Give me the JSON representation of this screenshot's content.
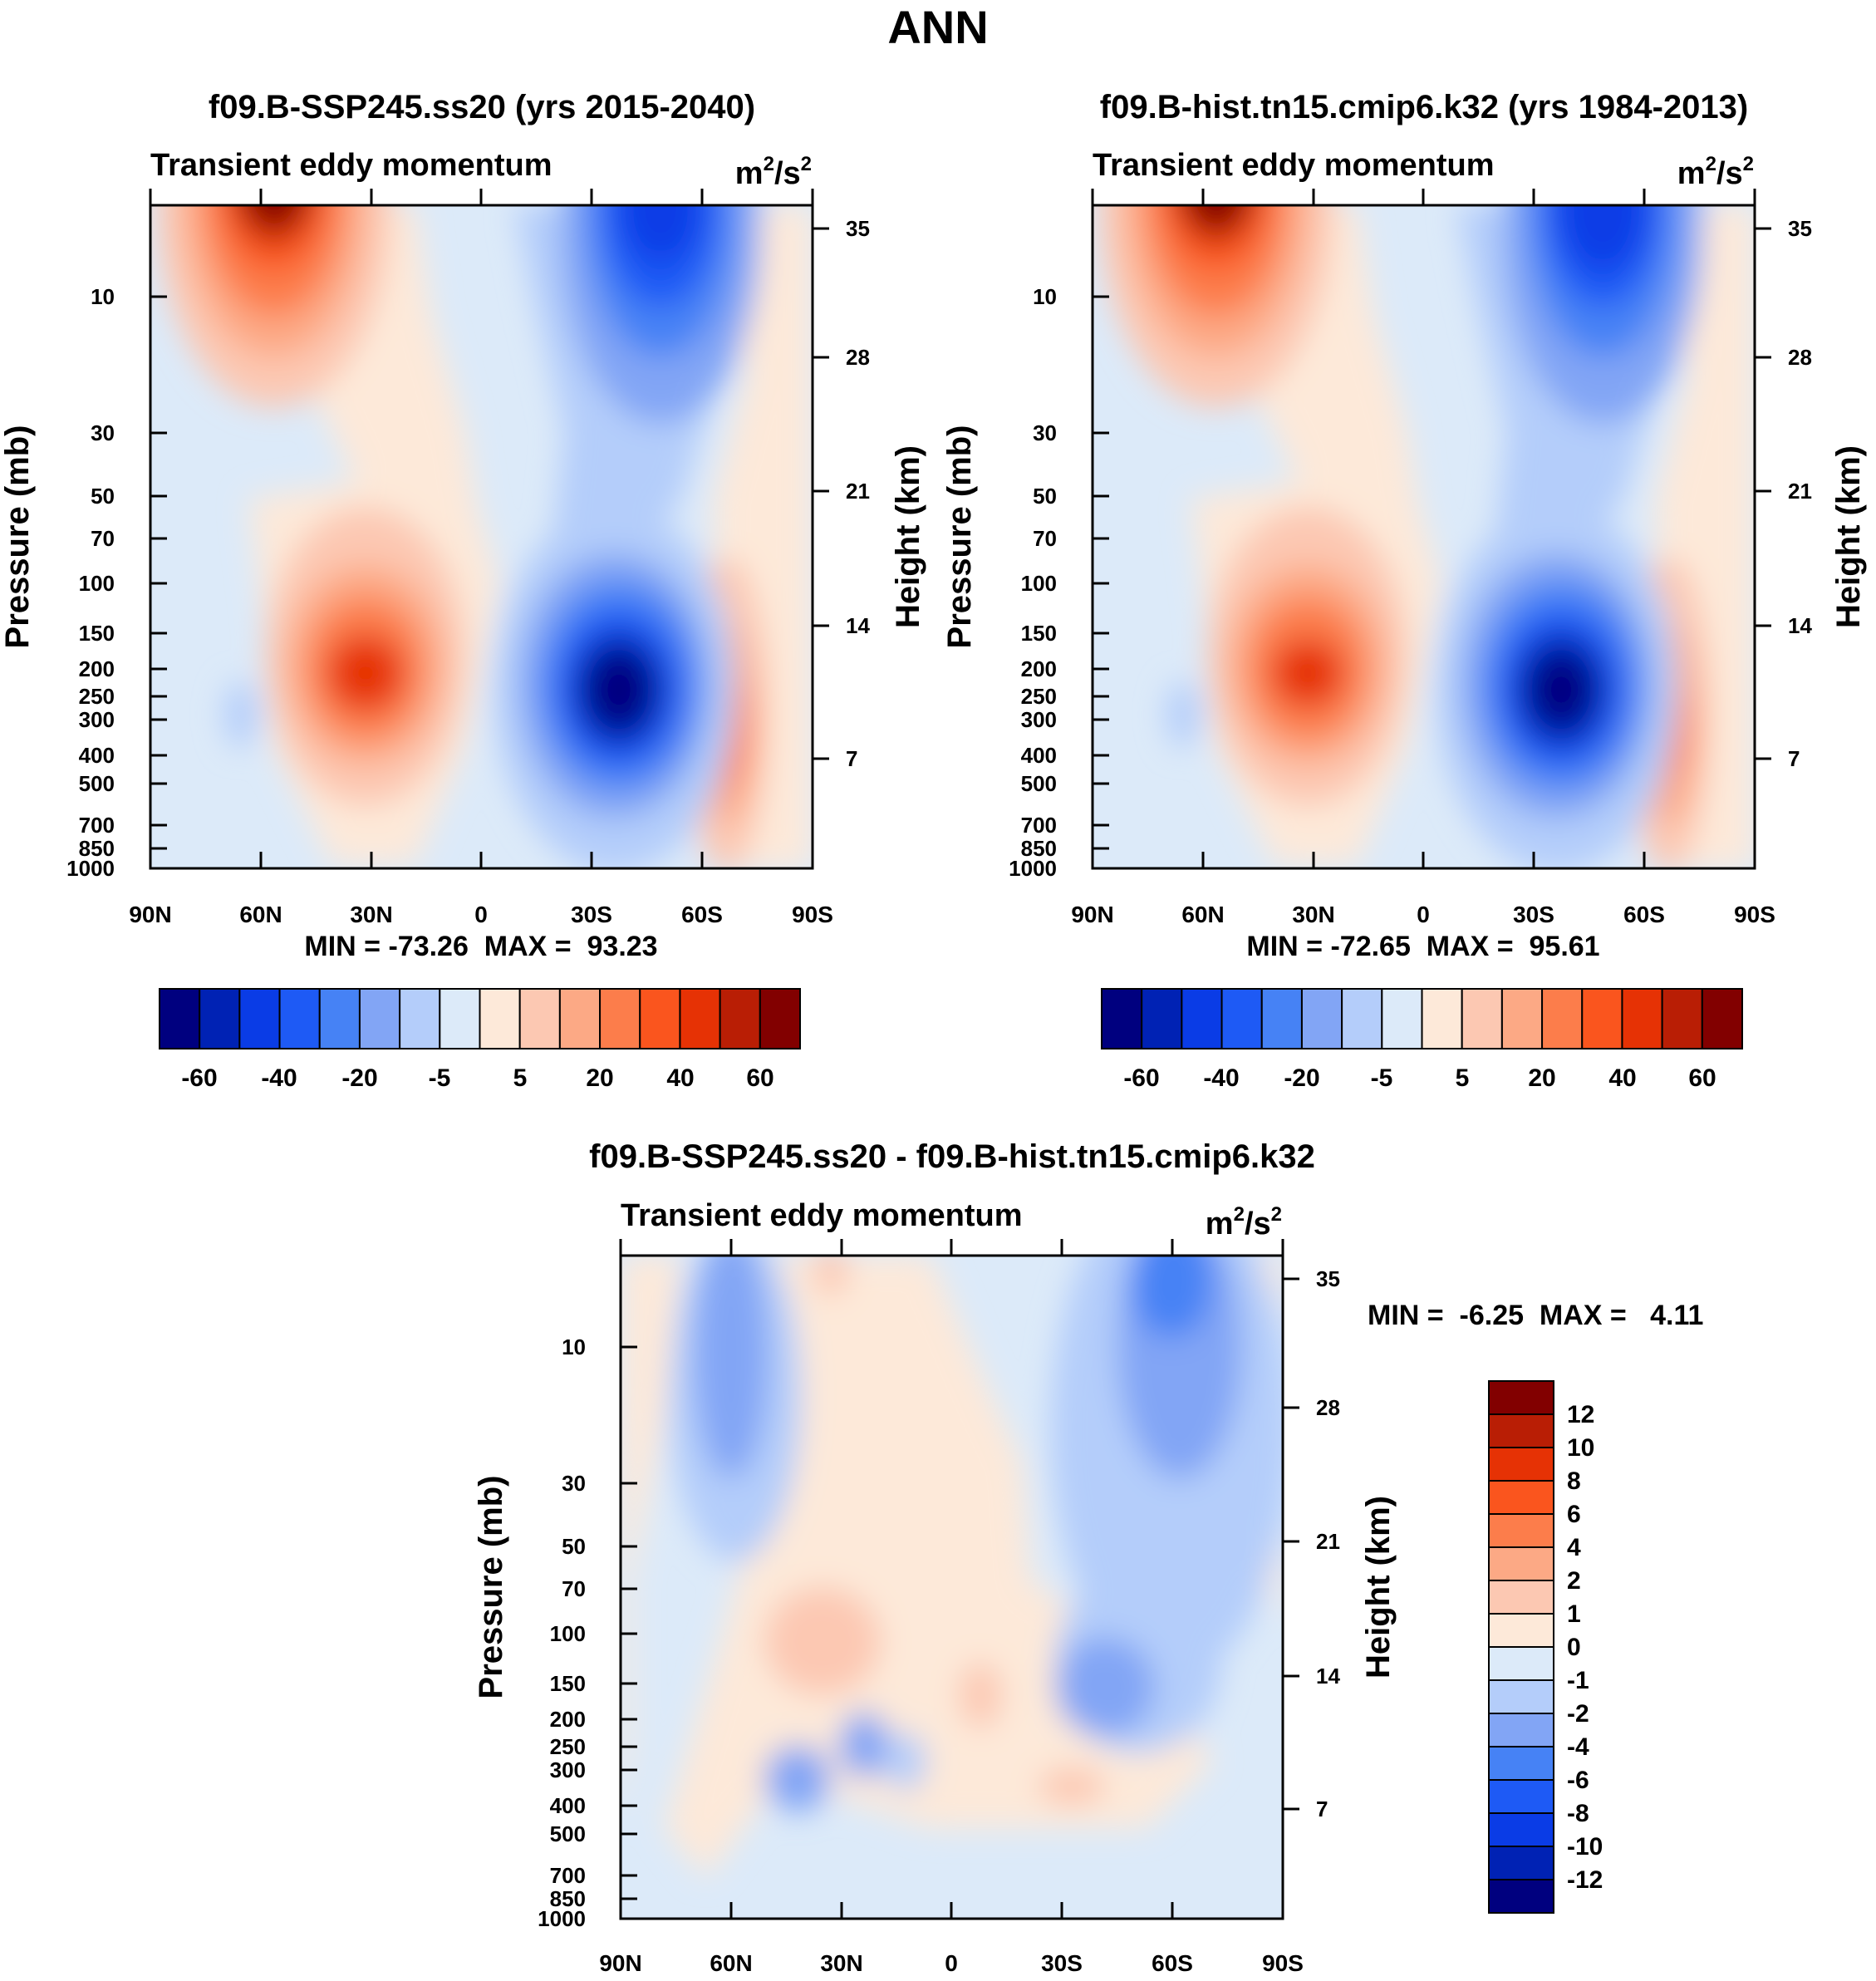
{
  "figure_title": "ANN",
  "chart_data": [
    {
      "type": "heatmap",
      "panel": "top-left",
      "title": "f09.B-SSP245.ss20 (yrs 2015-2040)",
      "subtitle_left": "Transient eddy momentum",
      "units_base": "m",
      "units_mid": "/s",
      "units_exp": "2",
      "ylabel": "Pressure (mb)",
      "y2label": "Height (km)",
      "xticks": [
        "90N",
        "60N",
        "30N",
        "0",
        "30S",
        "60S",
        "90S"
      ],
      "yticks": [
        "10",
        "30",
        "50",
        "70",
        "100",
        "150",
        "200",
        "250",
        "300",
        "400",
        "500",
        "700",
        "850",
        "1000"
      ],
      "y2ticks": [
        "35",
        "28",
        "21",
        "14",
        "7"
      ],
      "stats": "MIN = -73.26  MAX =  93.23",
      "colorbar_labels": [
        "-60",
        "-40",
        "-20",
        "-5",
        "5",
        "20",
        "40",
        "60"
      ],
      "features": [
        {
          "lat": 55,
          "p": 5,
          "value": 93
        },
        {
          "lat": 30,
          "p": 220,
          "value": 55
        },
        {
          "lat": -37,
          "p": 250,
          "value": -73
        },
        {
          "lat": -50,
          "p": 5,
          "value": -60
        },
        {
          "lat": -68,
          "p": 300,
          "value": 25
        }
      ]
    },
    {
      "type": "heatmap",
      "panel": "top-right",
      "title": "f09.B-hist.tn15.cmip6.k32 (yrs 1984-2013)",
      "subtitle_left": "Transient eddy momentum",
      "units_base": "m",
      "units_mid": "/s",
      "units_exp": "2",
      "ylabel": "Pressure (mb)",
      "y2label": "Height (km)",
      "xticks": [
        "90N",
        "60N",
        "30N",
        "0",
        "30S",
        "60S",
        "90S"
      ],
      "yticks": [
        "10",
        "30",
        "50",
        "70",
        "100",
        "150",
        "200",
        "250",
        "300",
        "400",
        "500",
        "700",
        "850",
        "1000"
      ],
      "y2ticks": [
        "35",
        "28",
        "21",
        "14",
        "7"
      ],
      "stats": "MIN = -72.65  MAX =  95.61",
      "colorbar_labels": [
        "-60",
        "-40",
        "-20",
        "-5",
        "5",
        "20",
        "40",
        "60"
      ],
      "features": [
        {
          "lat": 55,
          "p": 5,
          "value": 95
        },
        {
          "lat": 30,
          "p": 220,
          "value": 55
        },
        {
          "lat": -37,
          "p": 250,
          "value": -72
        },
        {
          "lat": -50,
          "p": 5,
          "value": -62
        },
        {
          "lat": -68,
          "p": 300,
          "value": 22
        }
      ]
    },
    {
      "type": "heatmap",
      "panel": "bottom",
      "title": "f09.B-SSP245.ss20 - f09.B-hist.tn15.cmip6.k32",
      "subtitle_left": "Transient eddy momentum",
      "units_base": "m",
      "units_mid": "/s",
      "units_exp": "2",
      "ylabel": "Pressure (mb)",
      "y2label": "Height (km)",
      "xticks": [
        "90N",
        "60N",
        "30N",
        "0",
        "30S",
        "60S",
        "90S"
      ],
      "yticks": [
        "10",
        "30",
        "50",
        "70",
        "100",
        "150",
        "200",
        "250",
        "300",
        "400",
        "500",
        "700",
        "850",
        "1000"
      ],
      "y2ticks": [
        "35",
        "28",
        "21",
        "14",
        "7"
      ],
      "stats": "MIN =  -6.25  MAX =   4.11",
      "colorbar_labels": [
        "12",
        "10",
        "8",
        "6",
        "4",
        "2",
        "1",
        "0",
        "-1",
        "-2",
        "-4",
        "-6",
        "-8",
        "-10",
        "-12"
      ],
      "features": [
        {
          "lat": 60,
          "p": 10,
          "value": -2.5
        },
        {
          "lat": -60,
          "p": 5,
          "value": -6
        },
        {
          "lat": -35,
          "p": 160,
          "value": -4
        },
        {
          "lat": 35,
          "p": 100,
          "value": 2
        }
      ]
    }
  ],
  "colors": {
    "diverging": [
      "#00007f",
      "#0022b4",
      "#0a3ce6",
      "#1e5af5",
      "#4682f5",
      "#82a5f5",
      "#b4cdfa",
      "#dceaf9",
      "#fde9d9",
      "#fcc8b2",
      "#fca985",
      "#fc7d4b",
      "#fa551e",
      "#e63205",
      "#b91e05",
      "#820000"
    ]
  }
}
